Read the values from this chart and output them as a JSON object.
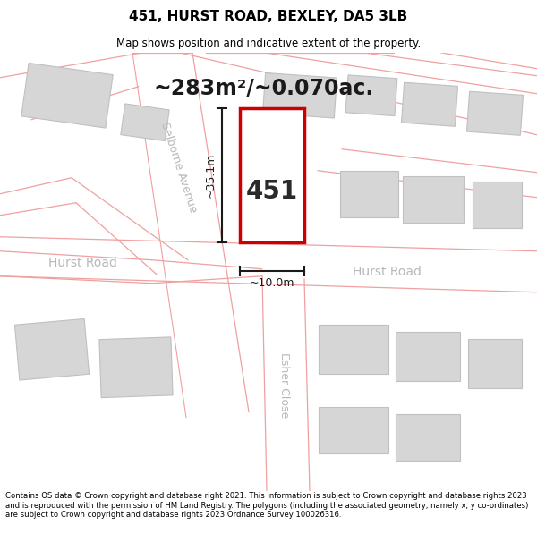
{
  "title": "451, HURST ROAD, BEXLEY, DA5 3LB",
  "subtitle": "Map shows position and indicative extent of the property.",
  "area_label": "~283m²/~0.070ac.",
  "property_number": "451",
  "dim_height": "~35.1m",
  "dim_width": "~10.0m",
  "street_selborne": "Selborne Avenue",
  "street_hurst_left": "Hurst Road",
  "street_hurst_right": "Hurst Road",
  "street_esher": "Esher Close",
  "footer": "Contains OS data © Crown copyright and database right 2021. This information is subject to Crown copyright and database rights 2023 and is reproduced with the permission of HM Land Registry. The polygons (including the associated geometry, namely x, y co-ordinates) are subject to Crown copyright and database rights 2023 Ordnance Survey 100026316.",
  "bg_color": "#ffffff",
  "map_bg": "#f7f7f7",
  "road_fill": "#ffffff",
  "road_outline": "#f0a0a0",
  "building_color": "#d6d6d6",
  "building_outline": "#c0c0c0",
  "property_outline": "#cc0000",
  "property_fill": "#ffffff",
  "dim_color": "#1a1a1a",
  "street_label_color": "#b8b8b8",
  "title_color": "#000000",
  "footer_color": "#000000"
}
